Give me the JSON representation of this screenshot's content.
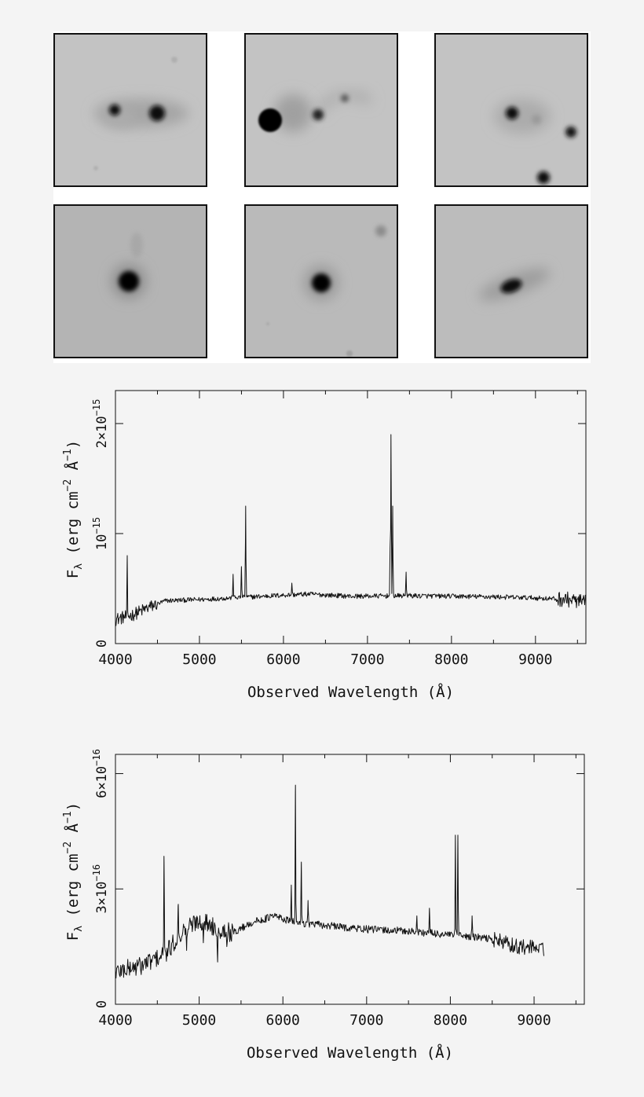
{
  "images": {
    "count": 6,
    "background_colors": [
      "#c3c3c3",
      "#c3c3c3",
      "#c3c3c3",
      "#b4b4b4",
      "#bababa",
      "#bcbcbc"
    ]
  },
  "chart_data": [
    {
      "type": "line",
      "title": "",
      "xlabel": "Observed Wavelength (Å)",
      "ylabel_parts": {
        "main": "F",
        "sub": "λ",
        "unit_open": " (erg cm",
        "exp1": "−2",
        "unit_mid": " Å",
        "exp2": "−1",
        "unit_close": ")"
      },
      "xlim": [
        4000,
        9600
      ],
      "ylim": [
        0,
        2.3e-15
      ],
      "xticks": [
        4000,
        5000,
        6000,
        7000,
        8000,
        9000
      ],
      "yticks": [
        {
          "value": 0,
          "base": "0",
          "exp": ""
        },
        {
          "value": 1e-15,
          "base": "10",
          "exp": "−15"
        },
        {
          "value": 2e-15,
          "base": "2×10",
          "exp": "−15"
        }
      ],
      "series": [
        {
          "continuum": [
            [
              4000,
              2.2e-16
            ],
            [
              4200,
              2.6e-16
            ],
            [
              4400,
              3.3e-16
            ],
            [
              4600,
              3.9e-16
            ],
            [
              5000,
              4e-16
            ],
            [
              5500,
              4.2e-16
            ],
            [
              6000,
              4.4e-16
            ],
            [
              6300,
              4.5e-16
            ],
            [
              6800,
              4.3e-16
            ],
            [
              7500,
              4.35e-16
            ],
            [
              8000,
              4.3e-16
            ],
            [
              8500,
              4.25e-16
            ],
            [
              9000,
              4.15e-16
            ],
            [
              9400,
              4e-16
            ],
            [
              9600,
              3.7e-16
            ]
          ],
          "emission_lines": [
            [
              4140,
              8e-16
            ],
            [
              5400,
              6.3e-16
            ],
            [
              5500,
              7e-16
            ],
            [
              5550,
              1.25e-15
            ],
            [
              6100,
              5.5e-16
            ],
            [
              7270,
              9e-16
            ],
            [
              7280,
              1.9e-15
            ],
            [
              7300,
              1.25e-15
            ],
            [
              7460,
              6.5e-16
            ]
          ],
          "noise_amplitude": 2.2e-17,
          "noisy_ranges": [
            [
              4000,
              4500,
              6e-17
            ],
            [
              9250,
              9600,
              7e-17
            ]
          ]
        }
      ]
    },
    {
      "type": "line",
      "title": "",
      "xlabel": "Observed Wavelength (Å)",
      "ylabel_parts": {
        "main": "F",
        "sub": "λ",
        "unit_open": " (erg cm",
        "exp1": "−2",
        "unit_mid": " Å",
        "exp2": "−1",
        "unit_close": ")"
      },
      "xlim": [
        4000,
        9600
      ],
      "ylim": [
        0,
        6.5e-16
      ],
      "xticks": [
        4000,
        5000,
        6000,
        7000,
        8000,
        9000
      ],
      "yticks": [
        {
          "value": 0,
          "base": "0",
          "exp": ""
        },
        {
          "value": 3e-16,
          "base": "3×10",
          "exp": "−16"
        },
        {
          "value": 6e-16,
          "base": "6×10",
          "exp": "−16"
        }
      ],
      "series": [
        {
          "continuum": [
            [
              4000,
              8.5e-17
            ],
            [
              4300,
              1e-16
            ],
            [
              4600,
              1.3e-16
            ],
            [
              4800,
              1.9e-16
            ],
            [
              5000,
              2.2e-16
            ],
            [
              5200,
              2e-16
            ],
            [
              5400,
              1.85e-16
            ],
            [
              5600,
              2.1e-16
            ],
            [
              5900,
              2.3e-16
            ],
            [
              6100,
              2.15e-16
            ],
            [
              6500,
              2.05e-16
            ],
            [
              7000,
              1.95e-16
            ],
            [
              7500,
              1.9e-16
            ],
            [
              8000,
              1.8e-16
            ],
            [
              8500,
              1.7e-16
            ],
            [
              8800,
              1.5e-16
            ],
            [
              9120,
              1.45e-16
            ]
          ],
          "emission_lines": [
            [
              4580,
              3.85e-16
            ],
            [
              4750,
              2.6e-16
            ],
            [
              6100,
              3.1e-16
            ],
            [
              6150,
              5.7e-16
            ],
            [
              6220,
              3.7e-16
            ],
            [
              6300,
              2.7e-16
            ],
            [
              7600,
              2.3e-16
            ],
            [
              7750,
              2.5e-16
            ],
            [
              8060,
              4.4e-16
            ],
            [
              8090,
              4.4e-16
            ],
            [
              8260,
              2.3e-16
            ]
          ],
          "absorption_lines": [
            [
              4850,
              1.4e-16
            ],
            [
              5050,
              1.6e-16
            ],
            [
              5220,
              1.1e-16
            ],
            [
              5330,
              1.5e-16
            ]
          ],
          "noise_amplitude": 1e-17,
          "noisy_ranges": [
            [
              4000,
              5400,
              2.5e-17
            ],
            [
              8500,
              9120,
              2e-17
            ]
          ]
        }
      ]
    }
  ]
}
